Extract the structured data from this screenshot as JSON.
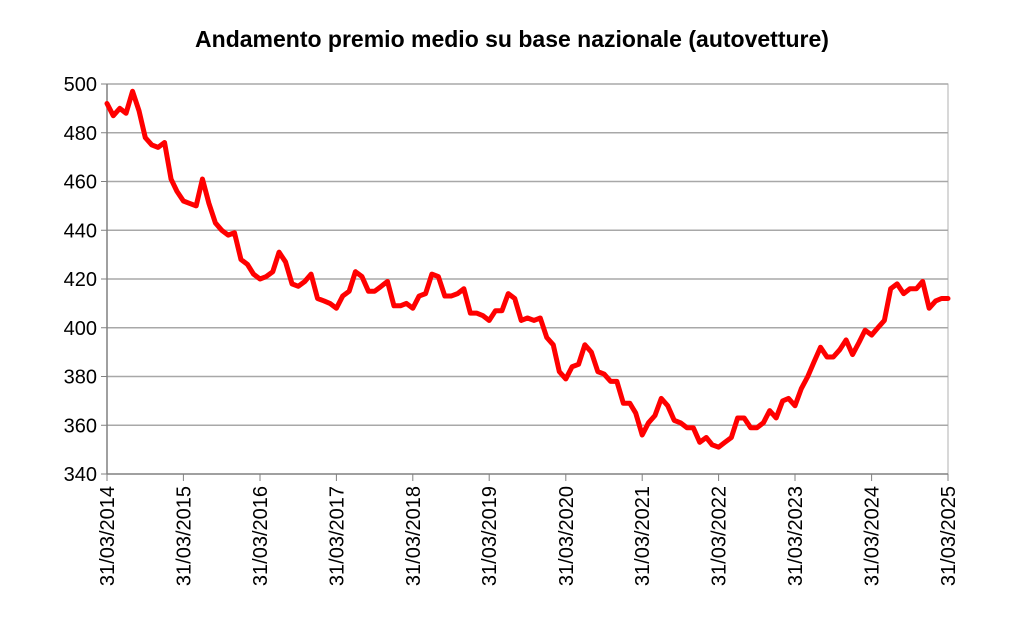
{
  "chart_data": {
    "type": "line",
    "title": "Andamento premio medio su base nazionale (autovetture)",
    "xlabel": "",
    "ylabel": "",
    "ylim": [
      340,
      500
    ],
    "yticks": [
      340,
      360,
      380,
      400,
      420,
      440,
      460,
      480,
      500
    ],
    "xtick_labels": [
      "31/03/2014",
      "31/03/2015",
      "31/03/2016",
      "31/03/2017",
      "31/03/2018",
      "31/03/2019",
      "31/03/2020",
      "31/03/2021",
      "31/03/2022",
      "31/03/2023",
      "31/03/2024",
      "31/03/2025"
    ],
    "grid": true,
    "legend": "none",
    "series": [
      {
        "color": "#ff0000",
        "points": [
          [
            "2014-03-31",
            492
          ],
          [
            "2014-04-30",
            487
          ],
          [
            "2014-05-31",
            490
          ],
          [
            "2014-06-30",
            488
          ],
          [
            "2014-07-31",
            497
          ],
          [
            "2014-08-31",
            489
          ],
          [
            "2014-09-30",
            478
          ],
          [
            "2014-10-31",
            475
          ],
          [
            "2014-11-30",
            474
          ],
          [
            "2014-12-31",
            476
          ],
          [
            "2015-01-31",
            461
          ],
          [
            "2015-02-28",
            456
          ],
          [
            "2015-03-31",
            452
          ],
          [
            "2015-04-30",
            451
          ],
          [
            "2015-05-31",
            450
          ],
          [
            "2015-06-30",
            461
          ],
          [
            "2015-07-31",
            451
          ],
          [
            "2015-08-31",
            443
          ],
          [
            "2015-09-30",
            440
          ],
          [
            "2015-10-31",
            438
          ],
          [
            "2015-11-30",
            439
          ],
          [
            "2015-12-31",
            428
          ],
          [
            "2016-01-31",
            426
          ],
          [
            "2016-02-29",
            422
          ],
          [
            "2016-03-31",
            420
          ],
          [
            "2016-04-30",
            421
          ],
          [
            "2016-05-31",
            423
          ],
          [
            "2016-06-30",
            431
          ],
          [
            "2016-07-31",
            427
          ],
          [
            "2016-08-31",
            418
          ],
          [
            "2016-09-30",
            417
          ],
          [
            "2016-10-31",
            419
          ],
          [
            "2016-11-30",
            422
          ],
          [
            "2016-12-31",
            412
          ],
          [
            "2017-01-31",
            411
          ],
          [
            "2017-02-28",
            410
          ],
          [
            "2017-03-31",
            408
          ],
          [
            "2017-04-30",
            413
          ],
          [
            "2017-05-31",
            415
          ],
          [
            "2017-06-30",
            423
          ],
          [
            "2017-07-31",
            421
          ],
          [
            "2017-08-31",
            415
          ],
          [
            "2017-09-30",
            415
          ],
          [
            "2017-10-31",
            417
          ],
          [
            "2017-11-30",
            419
          ],
          [
            "2017-12-31",
            409
          ],
          [
            "2018-01-31",
            409
          ],
          [
            "2018-02-28",
            410
          ],
          [
            "2018-03-31",
            408
          ],
          [
            "2018-04-30",
            413
          ],
          [
            "2018-05-31",
            414
          ],
          [
            "2018-06-30",
            422
          ],
          [
            "2018-07-31",
            421
          ],
          [
            "2018-08-31",
            413
          ],
          [
            "2018-09-30",
            413
          ],
          [
            "2018-10-31",
            414
          ],
          [
            "2018-11-30",
            416
          ],
          [
            "2018-12-31",
            406
          ],
          [
            "2019-01-31",
            406
          ],
          [
            "2019-02-28",
            405
          ],
          [
            "2019-03-31",
            403
          ],
          [
            "2019-04-30",
            407
          ],
          [
            "2019-05-31",
            407
          ],
          [
            "2019-06-30",
            414
          ],
          [
            "2019-07-31",
            412
          ],
          [
            "2019-08-31",
            403
          ],
          [
            "2019-09-30",
            404
          ],
          [
            "2019-10-31",
            403
          ],
          [
            "2019-11-30",
            404
          ],
          [
            "2019-12-31",
            396
          ],
          [
            "2020-01-31",
            393
          ],
          [
            "2020-02-29",
            382
          ],
          [
            "2020-03-31",
            379
          ],
          [
            "2020-04-30",
            384
          ],
          [
            "2020-05-31",
            385
          ],
          [
            "2020-06-30",
            393
          ],
          [
            "2020-07-31",
            390
          ],
          [
            "2020-08-31",
            382
          ],
          [
            "2020-09-30",
            381
          ],
          [
            "2020-10-31",
            378
          ],
          [
            "2020-11-30",
            378
          ],
          [
            "2020-12-31",
            369
          ],
          [
            "2021-01-31",
            369
          ],
          [
            "2021-02-28",
            365
          ],
          [
            "2021-03-31",
            356
          ],
          [
            "2021-04-30",
            361
          ],
          [
            "2021-05-31",
            364
          ],
          [
            "2021-06-30",
            371
          ],
          [
            "2021-07-31",
            368
          ],
          [
            "2021-08-31",
            362
          ],
          [
            "2021-09-30",
            361
          ],
          [
            "2021-10-31",
            359
          ],
          [
            "2021-11-30",
            359
          ],
          [
            "2021-12-31",
            353
          ],
          [
            "2022-01-31",
            355
          ],
          [
            "2022-02-28",
            352
          ],
          [
            "2022-03-31",
            351
          ],
          [
            "2022-04-30",
            353
          ],
          [
            "2022-05-31",
            355
          ],
          [
            "2022-06-30",
            363
          ],
          [
            "2022-07-31",
            363
          ],
          [
            "2022-08-31",
            359
          ],
          [
            "2022-09-30",
            359
          ],
          [
            "2022-10-31",
            361
          ],
          [
            "2022-11-30",
            366
          ],
          [
            "2022-12-31",
            363
          ],
          [
            "2023-01-31",
            370
          ],
          [
            "2023-02-28",
            371
          ],
          [
            "2023-03-31",
            368
          ],
          [
            "2023-04-30",
            375
          ],
          [
            "2023-05-31",
            380
          ],
          [
            "2023-06-30",
            386
          ],
          [
            "2023-07-31",
            392
          ],
          [
            "2023-08-31",
            388
          ],
          [
            "2023-09-30",
            388
          ],
          [
            "2023-10-31",
            391
          ],
          [
            "2023-11-30",
            395
          ],
          [
            "2023-12-31",
            389
          ],
          [
            "2024-01-31",
            394
          ],
          [
            "2024-02-29",
            399
          ],
          [
            "2024-03-31",
            397
          ],
          [
            "2024-04-30",
            400
          ],
          [
            "2024-05-31",
            403
          ],
          [
            "2024-06-30",
            416
          ],
          [
            "2024-07-31",
            418
          ],
          [
            "2024-08-31",
            414
          ],
          [
            "2024-09-30",
            416
          ],
          [
            "2024-10-31",
            416
          ],
          [
            "2024-11-30",
            419
          ],
          [
            "2024-12-31",
            408
          ],
          [
            "2025-01-31",
            411
          ],
          [
            "2025-02-28",
            412
          ],
          [
            "2025-03-31",
            412
          ]
        ]
      }
    ]
  }
}
